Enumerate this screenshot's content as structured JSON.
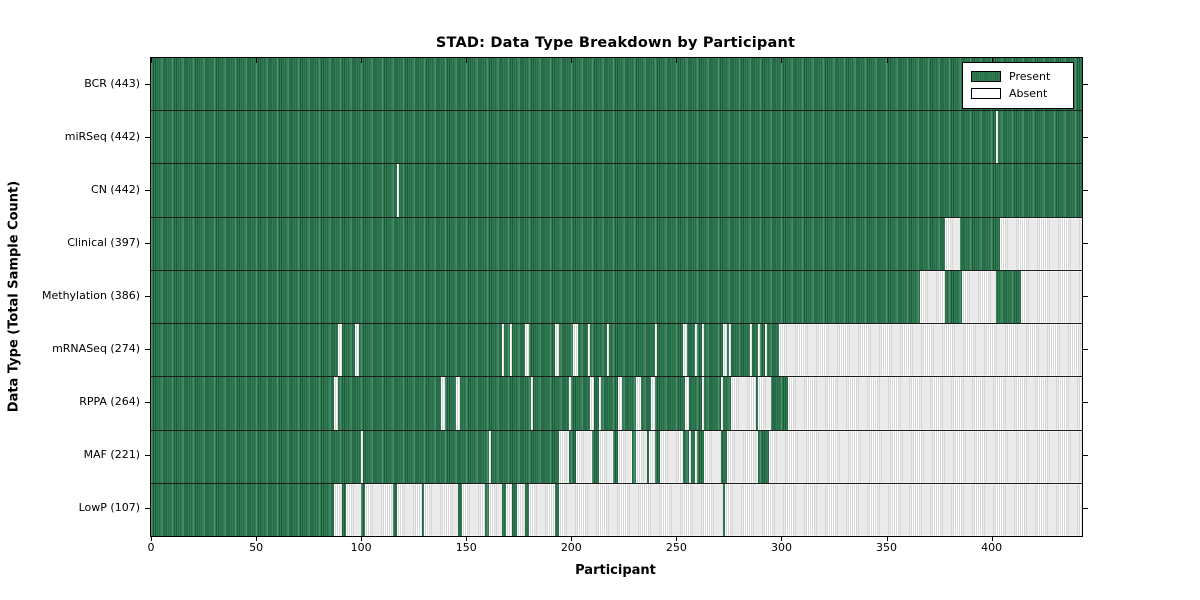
{
  "title": "STAD: Data Type Breakdown by Participant",
  "xlabel": "Participant",
  "ylabel": "Data Type (Total Sample Count)",
  "legend": [
    {
      "label": "Present",
      "color": "#2f7e54"
    },
    {
      "label": "Absent",
      "color": "#ffffff"
    }
  ],
  "colors": {
    "present_green": "#2f7e54",
    "absent_gray": "#d6d6d6",
    "border_black": "#000000"
  },
  "chart_data": {
    "type": "heatmap",
    "title": "STAD: Data Type Breakdown by Participant",
    "xlabel": "Participant",
    "ylabel": "Data Type (Total Sample Count)",
    "legend_position": "upper right",
    "grid": false,
    "x_max": 443,
    "x_ticks": [
      0,
      50,
      100,
      150,
      200,
      250,
      300,
      350,
      400
    ],
    "cell_states": [
      "Present",
      "Absent"
    ],
    "rows": [
      {
        "label": "BCR (443)",
        "name": "BCR",
        "present_count": 443,
        "absent_runs": []
      },
      {
        "label": "miRSeq (442)",
        "name": "miRSeq",
        "present_count": 442,
        "absent_runs": [
          [
            402,
            403
          ]
        ]
      },
      {
        "label": "CN (442)",
        "name": "CN",
        "present_count": 442,
        "absent_runs": [
          [
            117,
            118
          ]
        ]
      },
      {
        "label": "Clinical (397)",
        "name": "Clinical",
        "present_count": 397,
        "absent_runs": [
          [
            378,
            385
          ],
          [
            404,
            443
          ]
        ]
      },
      {
        "label": "Methylation (386)",
        "name": "Methylation",
        "present_count": 386,
        "absent_runs": [
          [
            366,
            378
          ],
          [
            386,
            402
          ],
          [
            414,
            443
          ]
        ]
      },
      {
        "label": "mRNASeq (274)",
        "name": "mRNASeq",
        "present_count": 274,
        "absent_runs": [
          [
            89,
            91
          ],
          [
            97,
            99
          ],
          [
            167,
            168
          ],
          [
            171,
            172
          ],
          [
            178,
            180
          ],
          [
            192,
            194
          ],
          [
            201,
            203
          ],
          [
            208,
            209
          ],
          [
            217,
            218
          ],
          [
            240,
            241
          ],
          [
            253,
            255
          ],
          [
            259,
            260
          ],
          [
            262,
            263
          ],
          [
            272,
            274
          ],
          [
            275,
            276
          ],
          [
            285,
            286
          ],
          [
            289,
            290
          ],
          [
            292,
            293
          ],
          [
            299,
            443
          ]
        ]
      },
      {
        "label": "RPPA (264)",
        "name": "RPPA",
        "present_count": 264,
        "absent_runs": [
          [
            87,
            89
          ],
          [
            138,
            140
          ],
          [
            145,
            147
          ],
          [
            181,
            182
          ],
          [
            199,
            200
          ],
          [
            209,
            211
          ],
          [
            213,
            214
          ],
          [
            222,
            224
          ],
          [
            231,
            233
          ],
          [
            238,
            240
          ],
          [
            254,
            256
          ],
          [
            262,
            263
          ],
          [
            271,
            272
          ],
          [
            276,
            288
          ],
          [
            289,
            295
          ],
          [
            303,
            443
          ]
        ]
      },
      {
        "label": "MAF (221)",
        "name": "MAF",
        "present_count": 221,
        "absent_runs": [
          [
            100,
            101
          ],
          [
            161,
            162
          ],
          [
            194,
            199
          ],
          [
            202,
            210
          ],
          [
            213,
            220
          ],
          [
            222,
            229
          ],
          [
            231,
            236
          ],
          [
            237,
            240
          ],
          [
            242,
            253
          ],
          [
            256,
            257
          ],
          [
            259,
            260
          ],
          [
            263,
            271
          ],
          [
            274,
            289
          ],
          [
            294,
            443
          ]
        ]
      },
      {
        "label": "LowP (107)",
        "name": "LowP",
        "present_count": 107,
        "absent_runs": [
          [
            87,
            91
          ],
          [
            93,
            100
          ],
          [
            102,
            115
          ],
          [
            117,
            129
          ],
          [
            130,
            146
          ],
          [
            148,
            159
          ],
          [
            161,
            167
          ],
          [
            169,
            172
          ],
          [
            174,
            178
          ],
          [
            180,
            192
          ],
          [
            194,
            272
          ],
          [
            273,
            443
          ]
        ]
      }
    ]
  }
}
